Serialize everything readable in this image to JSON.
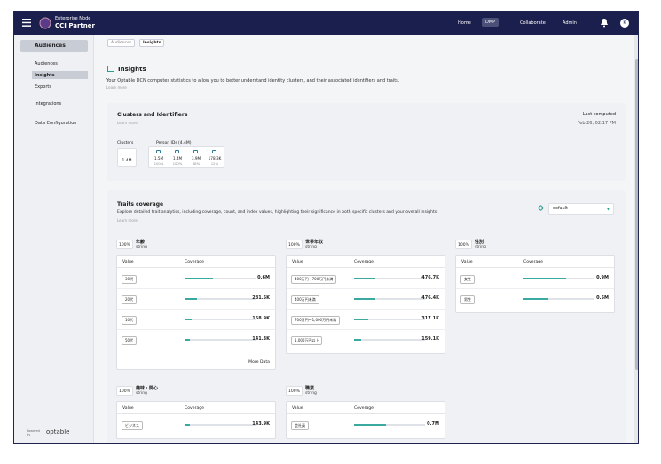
{
  "header": {
    "product_line1": "Enterprise Node",
    "product_line2": "CCI Partner",
    "nav": [
      "Home",
      "DMP",
      "Collaborate",
      "Admin"
    ],
    "avatar": "K"
  },
  "sidebar": {
    "items": [
      {
        "label": "Audiences",
        "sub": [
          "Audiences",
          "Insights",
          "Exports"
        ]
      },
      {
        "label": "Integrations"
      },
      {
        "label": "Data Configuration"
      }
    ],
    "powered": "Powered by",
    "brand": "optable"
  },
  "breadcrumb": [
    "Audiences",
    "Insights"
  ],
  "page": {
    "title": "Insights",
    "description": "Your Optable DCN computes statistics to allow you to better understand identity clusters, and their associated identifiers and traits.",
    "learn_more": "Learn more"
  },
  "clusters": {
    "title": "Clusters and Identifiers",
    "learn_more": "Learn more",
    "last_computed_label": "Last computed",
    "last_computed": "Feb 26, 02:17 PM",
    "clusters_label": "Clusters",
    "cluster_value": "1.4M",
    "person_ids": "Person IDs",
    "person_ids_count": "(4.4M)",
    "identifiers": [
      {
        "value": "1.5M",
        "pct": "100%"
      },
      {
        "value": "1.4M",
        "pct": "100%"
      },
      {
        "value": "3.9M",
        "pct": "88%"
      },
      {
        "value": "178.3K",
        "pct": "12%"
      }
    ]
  },
  "traits": {
    "title": "Traits coverage",
    "description": "Explore detailed trait analytics, including coverage, count, and index values, highlighting their significance in both specific clusters and your overall insights.",
    "learn_more": "Learn more",
    "select": "default",
    "col_value": "Value",
    "col_coverage": "Coverage",
    "more": "More Data",
    "list": [
      {
        "pct": "100%",
        "name": "年齢",
        "type": "string",
        "rows": [
          {
            "label": "30代",
            "value": "0.6M",
            "coverage": 40
          },
          {
            "label": "20代",
            "value": "281.5K",
            "coverage": 18
          },
          {
            "label": "10代",
            "value": "158.9K",
            "coverage": 10
          },
          {
            "label": "50代",
            "value": "141.3K",
            "coverage": 8
          }
        ]
      },
      {
        "pct": "100%",
        "name": "世帯年収",
        "type": "string",
        "rows": [
          {
            "label": "400万円〜700万円未満",
            "value": "476.7K",
            "coverage": 30
          },
          {
            "label": "400万円未満",
            "value": "476.4K",
            "coverage": 30
          },
          {
            "label": "700万円〜1,000万円未満",
            "value": "317.1K",
            "coverage": 20
          },
          {
            "label": "1,000万円以上",
            "value": "159.1K",
            "coverage": 10
          }
        ]
      },
      {
        "pct": "100%",
        "name": "性別",
        "type": "string",
        "rows": [
          {
            "label": "女性",
            "value": "0.9M",
            "coverage": 60
          },
          {
            "label": "男性",
            "value": "0.5M",
            "coverage": 35
          }
        ]
      },
      {
        "pct": "100%",
        "name": "趣味・関心",
        "type": "string",
        "rows": [
          {
            "label": "ビジネス",
            "value": "143.9K",
            "coverage": 8
          }
        ]
      },
      {
        "pct": "100%",
        "name": "職業",
        "type": "string",
        "rows": [
          {
            "label": "会社員",
            "value": "0.7M",
            "coverage": 45
          }
        ]
      }
    ]
  }
}
